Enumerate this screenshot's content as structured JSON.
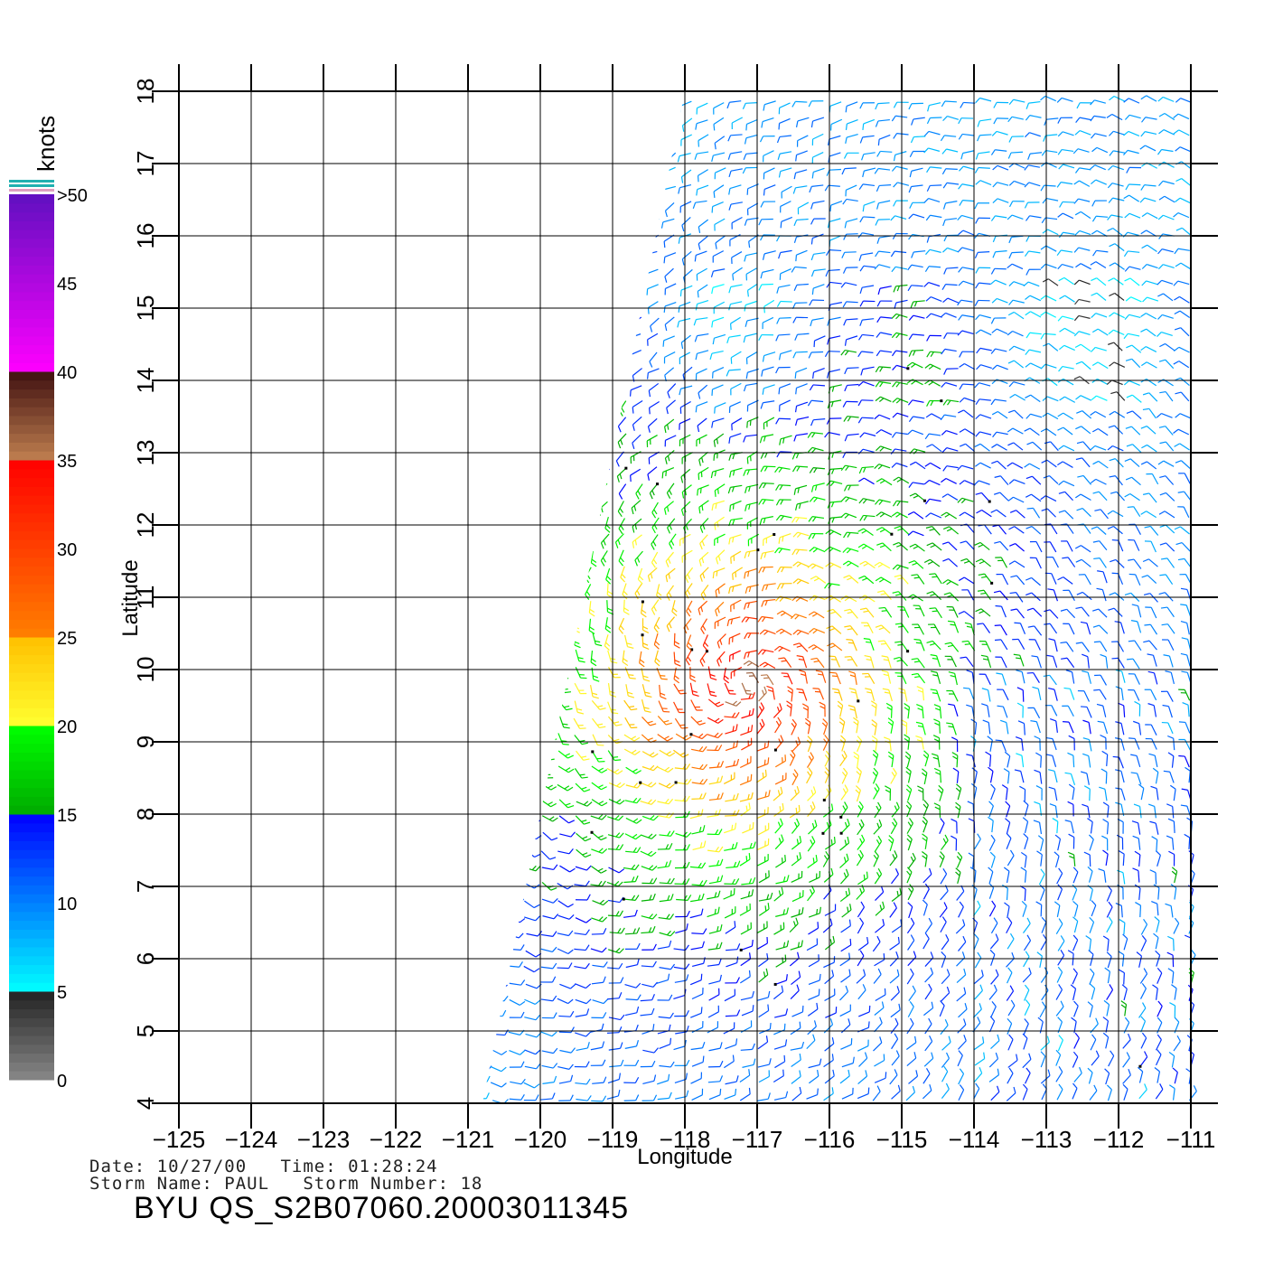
{
  "chart_data": {
    "type": "vector_field",
    "xlabel": "Longitude",
    "ylabel": "Latitude",
    "xlim": [
      -125,
      -111
    ],
    "ylim": [
      4,
      18
    ],
    "x_ticks": [
      "−125",
      "−124",
      "−123",
      "−122",
      "−121",
      "−120",
      "−119",
      "−118",
      "−117",
      "−116",
      "−115",
      "−114",
      "−113",
      "−112",
      "−111"
    ],
    "y_ticks": [
      "4",
      "5",
      "6",
      "7",
      "8",
      "9",
      "10",
      "11",
      "12",
      "13",
      "14",
      "15",
      "16",
      "17",
      "18"
    ],
    "swath_corners_lonlat": [
      [
        -118.0,
        18
      ],
      [
        -110.9,
        18
      ],
      [
        -110.9,
        4
      ],
      [
        -120.8,
        4
      ]
    ],
    "storm_center_lonlat": [
      -117.2,
      9.8
    ],
    "grid": true,
    "colorbar": {
      "title": "knots",
      "labels": [
        "0",
        "5",
        "10",
        "15",
        "20",
        "25",
        "30",
        "35",
        "40",
        "45",
        ">50"
      ],
      "segments": [
        {
          "from": 0,
          "to": 5,
          "colors": [
            "#888888",
            "#222222"
          ]
        },
        {
          "from": 5,
          "to": 15,
          "colors": [
            "#00ffff",
            "#0000ff"
          ]
        },
        {
          "from": 15,
          "to": 20,
          "colors": [
            "#00aa00",
            "#00ff00"
          ]
        },
        {
          "from": 20,
          "to": 25,
          "colors": [
            "#ffff30",
            "#ffc000"
          ]
        },
        {
          "from": 25,
          "to": 35,
          "colors": [
            "#ff8000",
            "#ff0000"
          ]
        },
        {
          "from": 35,
          "to": 40,
          "colors": [
            "#c08050",
            "#401010"
          ]
        },
        {
          "from": 40,
          "to": 50,
          "colors": [
            "#ff00ff",
            "#6010c0"
          ]
        }
      ]
    }
  },
  "footer": {
    "date_line": "Date: 10/27/00   Time: 01:28:24",
    "storm_line": "Storm Name: PAUL   Storm Number: 18",
    "file_id": "BYU QS_S2B07060.20003011345"
  }
}
